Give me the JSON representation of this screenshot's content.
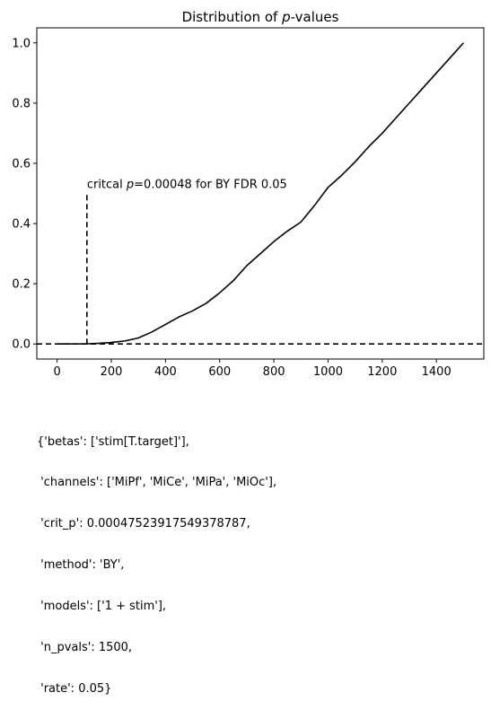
{
  "chart_data": {
    "type": "line",
    "title": "Distribution of p-values",
    "title_parts": {
      "before": "Distribution of ",
      "italic": "p",
      "after": "-values"
    },
    "xlabel": "",
    "ylabel": "",
    "xlim": [
      -75,
      1575
    ],
    "ylim": [
      -0.05,
      1.05
    ],
    "xticks": [
      0,
      200,
      400,
      600,
      800,
      1000,
      1200,
      1400
    ],
    "xtick_labels": [
      "0",
      "200",
      "400",
      "600",
      "800",
      "1000",
      "1200",
      "1400"
    ],
    "yticks": [
      0.0,
      0.2,
      0.4,
      0.6,
      0.8,
      1.0
    ],
    "ytick_labels": [
      "0.0",
      "0.2",
      "0.4",
      "0.6",
      "0.8",
      "1.0"
    ],
    "grid": false,
    "series": [
      {
        "color": "#000000",
        "x": [
          0,
          100,
          150,
          200,
          250,
          300,
          350,
          400,
          450,
          500,
          550,
          600,
          650,
          700,
          750,
          800,
          850,
          900,
          950,
          1000,
          1050,
          1100,
          1150,
          1200,
          1250,
          1300,
          1350,
          1400,
          1450,
          1500
        ],
        "y": [
          0.0,
          0.0003,
          0.002,
          0.005,
          0.01,
          0.02,
          0.04,
          0.065,
          0.09,
          0.11,
          0.135,
          0.17,
          0.21,
          0.26,
          0.3,
          0.34,
          0.375,
          0.405,
          0.46,
          0.52,
          0.56,
          0.605,
          0.655,
          0.7,
          0.75,
          0.8,
          0.85,
          0.9,
          0.95,
          1.0
        ]
      }
    ],
    "reference_lines": [
      {
        "orientation": "horizontal",
        "y": 0.0,
        "style": "dashed",
        "color": "#000000"
      },
      {
        "orientation": "vertical",
        "x": 110,
        "y_range": [
          0.0,
          0.5
        ],
        "style": "dashed",
        "color": "#000000"
      }
    ],
    "annotation": {
      "x": 110,
      "y": 0.53,
      "before": "critcal ",
      "italic": "p",
      "after": "=0.00048 for BY FDR 0.05"
    }
  },
  "metadata_text": {
    "lines": [
      "{'betas': ['stim[T.target]'],",
      " 'channels': ['MiPf', 'MiCe', 'MiPa', 'MiOc'],",
      " 'crit_p': 0.00047523917549378787,",
      " 'method': 'BY',",
      " 'models': ['1 + stim'],",
      " 'n_pvals': 1500,",
      " 'rate': 0.05}"
    ]
  }
}
